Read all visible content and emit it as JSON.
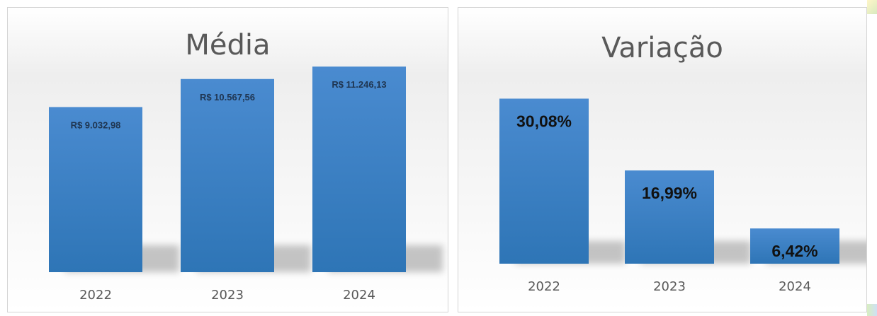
{
  "chart_data": [
    {
      "type": "bar",
      "title": "Média",
      "categories": [
        "2022",
        "2023",
        "2024"
      ],
      "values": [
        9032.98,
        10567.56,
        11246.13
      ],
      "data_labels": [
        "R$ 9.032,98",
        "R$ 10.567,56",
        "R$ 11.246,13"
      ],
      "ylim": [
        0,
        14000
      ],
      "grid": false,
      "legend": "none",
      "colors": {
        "bar": "#4a8bd0",
        "bar_dark": "#2e75b6",
        "label": "#1f3550",
        "axis_label": "#595959"
      }
    },
    {
      "type": "bar",
      "title": "Variação",
      "categories": [
        "2022",
        "2023",
        "2024"
      ],
      "values": [
        30.08,
        16.99,
        6.42
      ],
      "data_labels": [
        "30,08%",
        "16,99%",
        "6,42%"
      ],
      "ylim": [
        0,
        42
      ],
      "grid": false,
      "legend": "none",
      "colors": {
        "bar": "#4a8bd0",
        "bar_dark": "#2e75b6",
        "label": "#111111",
        "axis_label": "#595959"
      }
    }
  ]
}
